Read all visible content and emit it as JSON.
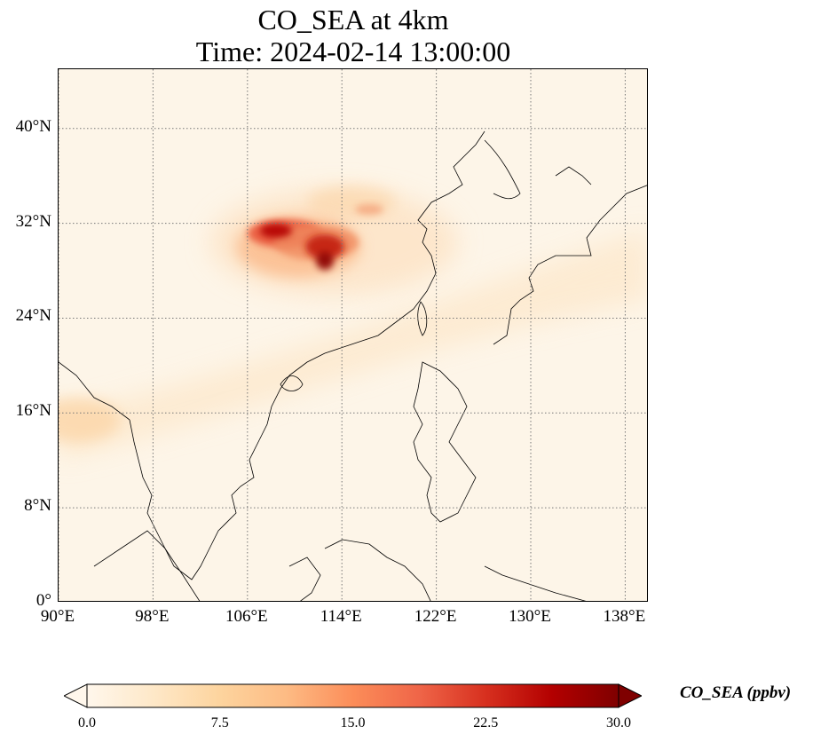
{
  "title": {
    "line1": "CO_SEA at 4km",
    "line2": "Time: 2024-02-14 13:00:00"
  },
  "map": {
    "extent": {
      "lon_min": 90,
      "lon_max": 140,
      "lat_min": 0,
      "lat_max": 45
    },
    "lat_ticks": [
      {
        "value": 40,
        "label": "40°N"
      },
      {
        "value": 32,
        "label": "32°N"
      },
      {
        "value": 24,
        "label": "24°N"
      },
      {
        "value": 16,
        "label": "16°N"
      },
      {
        "value": 8,
        "label": "8°N"
      },
      {
        "value": 0,
        "label": "0°"
      }
    ],
    "lon_ticks": [
      {
        "value": 90,
        "label": "90°E"
      },
      {
        "value": 98,
        "label": "98°E"
      },
      {
        "value": 106,
        "label": "106°E"
      },
      {
        "value": 114,
        "label": "114°E"
      },
      {
        "value": 122,
        "label": "122°E"
      },
      {
        "value": 130,
        "label": "130°E"
      },
      {
        "value": 138,
        "label": "138°E"
      }
    ],
    "gridlines": "dotted"
  },
  "colorbar": {
    "label": "CO_SEA (ppbv)",
    "min": 0,
    "max": 30,
    "ticks": [
      {
        "value": 0,
        "label": "0.0"
      },
      {
        "value": 7.5,
        "label": "7.5"
      },
      {
        "value": 15,
        "label": "15.0"
      },
      {
        "value": 22.5,
        "label": "22.5"
      },
      {
        "value": 30,
        "label": "30.0"
      }
    ],
    "colormap": [
      "#fff7ec",
      "#fee8c8",
      "#fdd49e",
      "#fdbb84",
      "#fc8d59",
      "#ef6548",
      "#d7301f",
      "#b30000",
      "#7f0000"
    ]
  }
}
